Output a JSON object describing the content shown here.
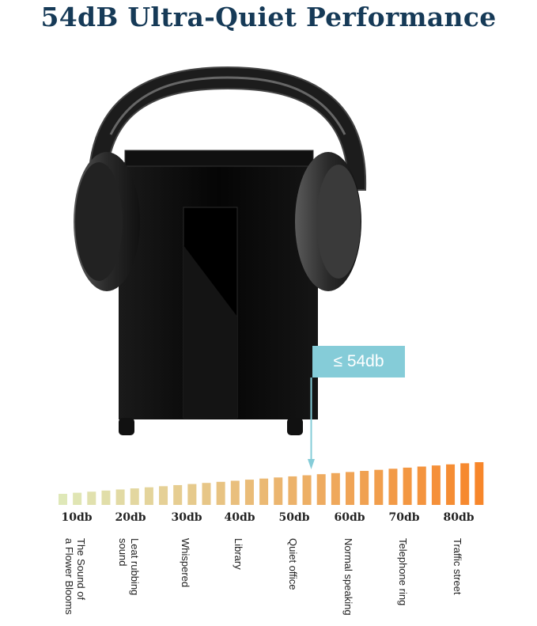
{
  "title": "54dB Ultra-Quiet Performance",
  "callout": {
    "label": "≤ 54db",
    "color": "#85ccd8"
  },
  "colors": {
    "title": "#163a57",
    "bar_low": "#dfe8b8",
    "bar_high": "#f7862a"
  },
  "scale": {
    "marker_db": 54,
    "ticks": [
      {
        "label": "10db",
        "desc": "The Sound of\na Flower Blooms"
      },
      {
        "label": "20db",
        "desc": "Leat rubbing\nsound"
      },
      {
        "label": "30db",
        "desc": "Whispered"
      },
      {
        "label": "40db",
        "desc": "Library"
      },
      {
        "label": "50db",
        "desc": "Quiet office"
      },
      {
        "label": "60db",
        "desc": "Normal speaking"
      },
      {
        "label": "70db",
        "desc": "Telephone ring"
      },
      {
        "label": "80db",
        "desc": "Traffic street"
      }
    ]
  },
  "icons": {
    "product": "headphones-on-shredder-image",
    "arrow": "arrow-down-icon"
  }
}
